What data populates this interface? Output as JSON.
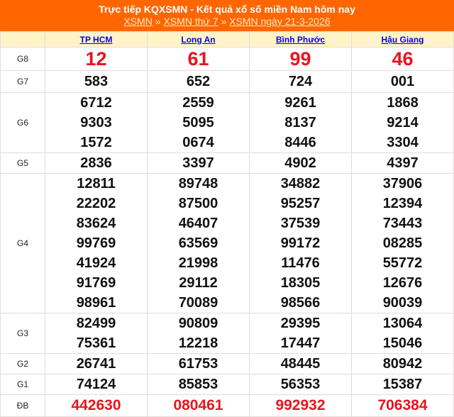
{
  "header": {
    "title": "Trực tiếp KQXSMN - Kết quả xổ số miền Nam hôm nay",
    "breadcrumb": [
      {
        "label": "XSMN"
      },
      {
        "label": "XSMN thứ 7"
      },
      {
        "label": "XSMN ngày 21-3-2026"
      }
    ],
    "separator": "»"
  },
  "colors": {
    "header_bg": "#ff6600",
    "special_prize": "#e8141e",
    "column_header_bg": "#fff3c7",
    "link": "#0000ee"
  },
  "provinces": [
    "TP HCM",
    "Long An",
    "Bình Phước",
    "Hậu Giang"
  ],
  "prizes": [
    {
      "label": "G8",
      "cls": "g8",
      "values": [
        [
          "12"
        ],
        [
          "61"
        ],
        [
          "99"
        ],
        [
          "46"
        ]
      ]
    },
    {
      "label": "G7",
      "cls": "g7",
      "values": [
        [
          "583"
        ],
        [
          "652"
        ],
        [
          "724"
        ],
        [
          "001"
        ]
      ]
    },
    {
      "label": "G6",
      "cls": "g6",
      "values": [
        [
          "6712",
          "9303",
          "1572"
        ],
        [
          "2559",
          "5095",
          "0674"
        ],
        [
          "9261",
          "8137",
          "8446"
        ],
        [
          "1868",
          "9214",
          "3304"
        ]
      ]
    },
    {
      "label": "G5",
      "cls": "g5",
      "values": [
        [
          "2836"
        ],
        [
          "3397"
        ],
        [
          "4902"
        ],
        [
          "4397"
        ]
      ]
    },
    {
      "label": "G4",
      "cls": "g4",
      "values": [
        [
          "12811",
          "22202",
          "83624",
          "99769",
          "41924",
          "91769",
          "98961"
        ],
        [
          "89748",
          "87500",
          "46407",
          "63569",
          "21998",
          "29112",
          "70089"
        ],
        [
          "34882",
          "95257",
          "37539",
          "99172",
          "11476",
          "18305",
          "98566"
        ],
        [
          "37906",
          "12394",
          "73443",
          "08285",
          "55772",
          "12676",
          "90039"
        ]
      ]
    },
    {
      "label": "G3",
      "cls": "g3",
      "values": [
        [
          "82499",
          "75361"
        ],
        [
          "90809",
          "12218"
        ],
        [
          "29395",
          "17447"
        ],
        [
          "13064",
          "15046"
        ]
      ]
    },
    {
      "label": "G2",
      "cls": "g2",
      "values": [
        [
          "26741"
        ],
        [
          "61753"
        ],
        [
          "48445"
        ],
        [
          "80942"
        ]
      ]
    },
    {
      "label": "G1",
      "cls": "g1",
      "values": [
        [
          "74124"
        ],
        [
          "85853"
        ],
        [
          "56353"
        ],
        [
          "15387"
        ]
      ]
    },
    {
      "label": "ĐB",
      "cls": "db",
      "values": [
        [
          "442630"
        ],
        [
          "080461"
        ],
        [
          "992932"
        ],
        [
          "706384"
        ]
      ]
    }
  ]
}
